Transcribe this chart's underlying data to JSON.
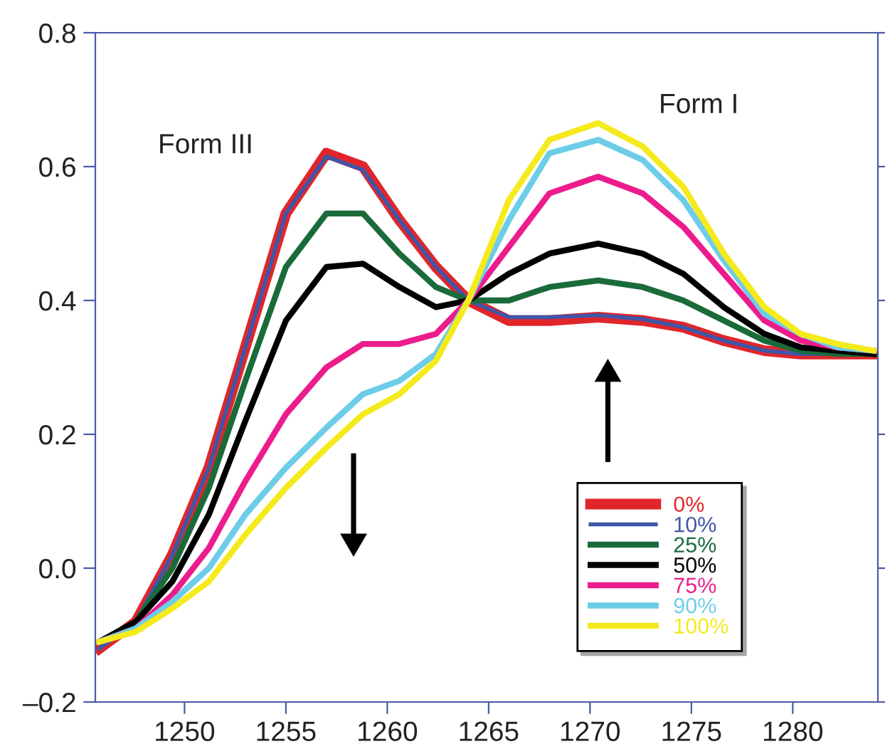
{
  "chart_data": {
    "type": "line",
    "x": [
      1245.8,
      1247.6,
      1249.4,
      1251.2,
      1253.0,
      1255.0,
      1257.0,
      1258.8,
      1260.6,
      1262.4,
      1264.0,
      1266.0,
      1268.0,
      1270.4,
      1272.6,
      1274.6,
      1276.6,
      1278.6,
      1280.4,
      1282.2,
      1284.0
    ],
    "series": [
      {
        "name": "0%",
        "color": "#e0262b",
        "values": [
          -0.12,
          -0.08,
          0.02,
          0.15,
          0.33,
          0.53,
          0.62,
          0.6,
          0.52,
          0.45,
          0.4,
          0.37,
          0.37,
          0.375,
          0.37,
          0.36,
          0.34,
          0.325,
          0.32,
          0.32,
          0.32
        ]
      },
      {
        "name": "10%",
        "color": "#3f56a8",
        "values": [
          -0.12,
          -0.08,
          0.02,
          0.15,
          0.33,
          0.53,
          0.615,
          0.595,
          0.52,
          0.45,
          0.4,
          0.375,
          0.375,
          0.378,
          0.372,
          0.36,
          0.34,
          0.325,
          0.32,
          0.32,
          0.32
        ]
      },
      {
        "name": "25%",
        "color": "#1a6b3a",
        "values": [
          -0.11,
          -0.08,
          0.0,
          0.12,
          0.28,
          0.45,
          0.53,
          0.53,
          0.47,
          0.42,
          0.4,
          0.4,
          0.42,
          0.43,
          0.42,
          0.4,
          0.37,
          0.34,
          0.325,
          0.32,
          0.32
        ]
      },
      {
        "name": "50%",
        "color": "#000000",
        "values": [
          -0.11,
          -0.08,
          -0.02,
          0.08,
          0.22,
          0.37,
          0.45,
          0.455,
          0.42,
          0.39,
          0.4,
          0.44,
          0.47,
          0.485,
          0.47,
          0.44,
          0.39,
          0.35,
          0.33,
          0.325,
          0.32
        ]
      },
      {
        "name": "75%",
        "color": "#ec1c8c",
        "values": [
          -0.11,
          -0.09,
          -0.04,
          0.03,
          0.13,
          0.23,
          0.3,
          0.335,
          0.335,
          0.35,
          0.4,
          0.48,
          0.56,
          0.585,
          0.56,
          0.51,
          0.44,
          0.37,
          0.34,
          0.33,
          0.325
        ]
      },
      {
        "name": "90%",
        "color": "#6dcde8",
        "values": [
          -0.11,
          -0.09,
          -0.05,
          0.0,
          0.08,
          0.15,
          0.21,
          0.26,
          0.28,
          0.32,
          0.4,
          0.52,
          0.62,
          0.64,
          0.61,
          0.55,
          0.46,
          0.38,
          0.35,
          0.33,
          0.325
        ]
      },
      {
        "name": "100%",
        "color": "#f5ea1c",
        "values": [
          -0.11,
          -0.095,
          -0.06,
          -0.02,
          0.05,
          0.12,
          0.18,
          0.23,
          0.26,
          0.31,
          0.4,
          0.55,
          0.64,
          0.665,
          0.63,
          0.57,
          0.47,
          0.39,
          0.35,
          0.335,
          0.325
        ]
      }
    ],
    "xlim": [
      1245.6,
      1284.2
    ],
    "ylim": [
      -0.2,
      0.8
    ],
    "xticks": [
      1250,
      1255,
      1260,
      1265,
      1270,
      1275,
      1280
    ],
    "yticks": [
      {
        "value": -0.2,
        "label": "–0.2"
      },
      {
        "value": 0.0,
        "label": "0.0"
      },
      0.2,
      0.4,
      0.6,
      0.8
    ],
    "annotations": [
      "Form III",
      "Form I"
    ],
    "legend": "bottom right",
    "grid": false,
    "marker": "none",
    "line_style": "solid"
  }
}
